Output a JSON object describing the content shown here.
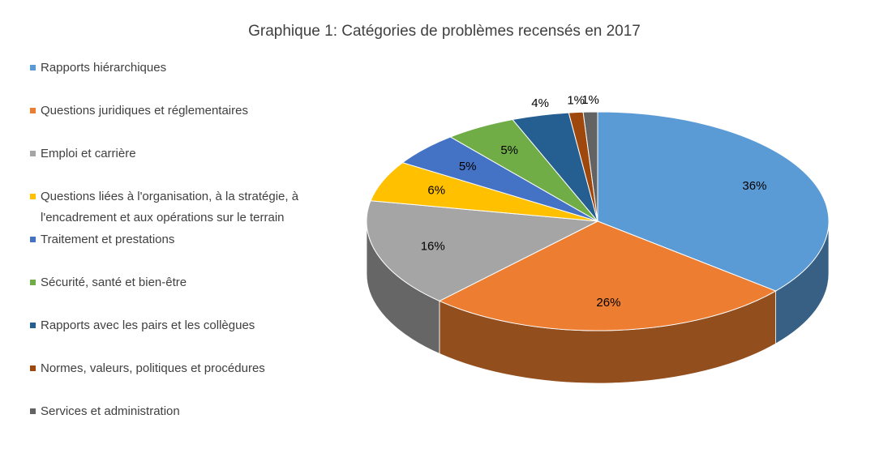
{
  "chart_data": {
    "type": "pie3d",
    "title": "Graphique 1: Catégories de problèmes recensés en 2017",
    "categories": [
      "Rapports hiérarchiques",
      "Questions juridiques et réglementaires",
      "Emploi et carrière",
      "Questions liées à l'organisation, à la stratégie, à l'encadrement et aux opérations sur le terrain",
      "Traitement et prestations",
      "Sécurité, santé et bien-être",
      "Rapports avec les pairs et les collègues",
      "Normes, valeurs, politiques et procédures",
      "Services et administration"
    ],
    "values": [
      36,
      26,
      16,
      6,
      5,
      5,
      4,
      1,
      1
    ],
    "value_labels": [
      "36%",
      "26%",
      "16%",
      "6%",
      "5%",
      "5%",
      "4%",
      "1%",
      "1%"
    ],
    "colors": [
      "#5b9bd5",
      "#ed7d31",
      "#a5a5a5",
      "#ffc000",
      "#4472c4",
      "#70ad47",
      "#255e91",
      "#9e480e",
      "#636363"
    ],
    "legend": "left"
  }
}
